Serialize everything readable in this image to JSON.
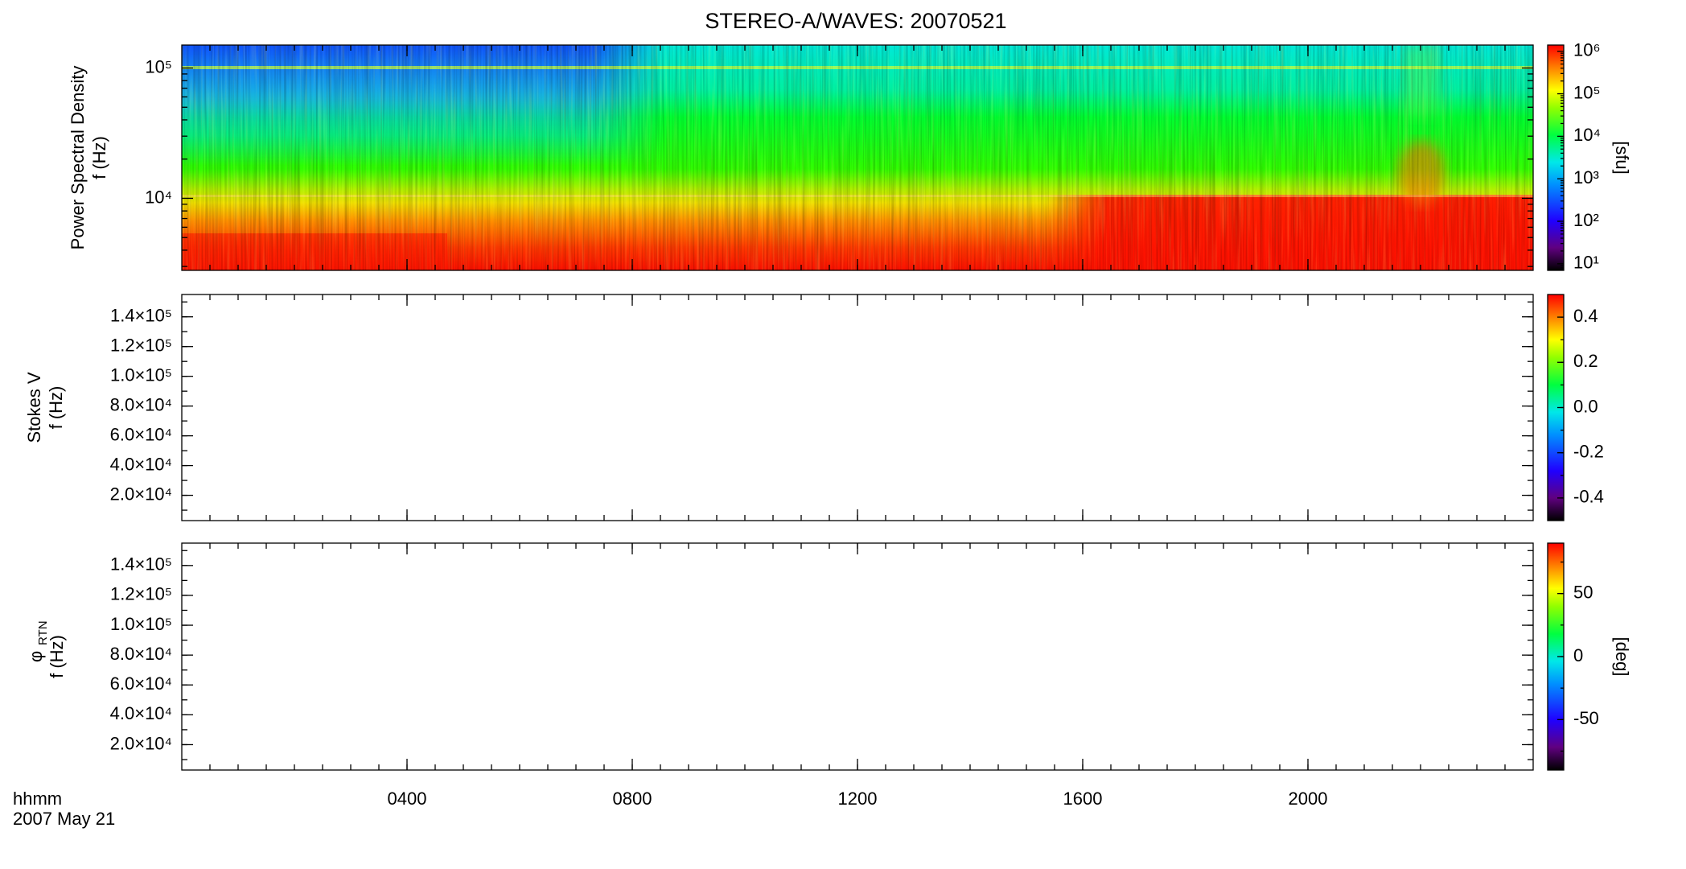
{
  "chart_data": [
    {
      "type": "spectrogram",
      "title": "STEREO-A/WAVES: 20070521",
      "ylabel": [
        "Power Spectral Density",
        "f (Hz)"
      ],
      "xlim": [
        0,
        24
      ],
      "ylim": [
        2800,
        150000
      ],
      "ylog": true,
      "yticks": [
        {
          "value": 10000,
          "label": "10⁴"
        },
        {
          "value": 100000,
          "label": "10⁵"
        }
      ],
      "clim": [
        7,
        1400000
      ],
      "clog": true,
      "clabel": "[sfu]",
      "cticks": [
        {
          "value": 10,
          "label": "10¹"
        },
        {
          "value": 100,
          "label": "10²"
        },
        {
          "value": 1000,
          "label": "10³"
        },
        {
          "value": 10000,
          "label": "10⁴"
        },
        {
          "value": 100000,
          "label": "10⁵"
        },
        {
          "value": 1000000,
          "label": "10⁶"
        }
      ]
    },
    {
      "type": "spectrogram",
      "ylabel": [
        "Stokes V",
        "f (Hz)"
      ],
      "xlim": [
        0,
        24
      ],
      "ylim": [
        3000,
        155000
      ],
      "ylog": false,
      "yticks": [
        {
          "value": 20000,
          "label": "2.0×10⁴"
        },
        {
          "value": 40000,
          "label": "4.0×10⁴"
        },
        {
          "value": 60000,
          "label": "6.0×10⁴"
        },
        {
          "value": 80000,
          "label": "8.0×10⁴"
        },
        {
          "value": 100000,
          "label": "1.0×10⁵"
        },
        {
          "value": 120000,
          "label": "1.2×10⁵"
        },
        {
          "value": 140000,
          "label": "1.4×10⁵"
        }
      ],
      "clim": [
        -0.5,
        0.5
      ],
      "clog": false,
      "cticks": [
        -0.4,
        -0.2,
        {
          "value": 0,
          "label": "0.0"
        },
        0.2,
        0.4
      ]
    },
    {
      "type": "spectrogram",
      "ylabel": [
        "φ",
        "f (Hz)"
      ],
      "ylabel_sub": "RTN",
      "xlim": [
        0,
        24
      ],
      "ylim": [
        3000,
        155000
      ],
      "ylog": false,
      "yticks": [
        {
          "value": 20000,
          "label": "2.0×10⁴"
        },
        {
          "value": 40000,
          "label": "4.0×10⁴"
        },
        {
          "value": 60000,
          "label": "6.0×10⁴"
        },
        {
          "value": 80000,
          "label": "8.0×10⁴"
        },
        {
          "value": 100000,
          "label": "1.0×10⁵"
        },
        {
          "value": 120000,
          "label": "1.2×10⁵"
        },
        {
          "value": 140000,
          "label": "1.4×10⁵"
        }
      ],
      "clim": [
        -90,
        90
      ],
      "clog": false,
      "clabel": "[deg]",
      "cticks": [
        -50,
        0,
        50
      ],
      "xlabel": "hhmm",
      "date": "2007 May 21",
      "xticks": [
        {
          "value": 4,
          "label": "0400"
        },
        {
          "value": 8,
          "label": "0800"
        },
        {
          "value": 12,
          "label": "1200"
        },
        {
          "value": 16,
          "label": "1600"
        },
        {
          "value": 20,
          "label": "2000"
        }
      ]
    }
  ]
}
